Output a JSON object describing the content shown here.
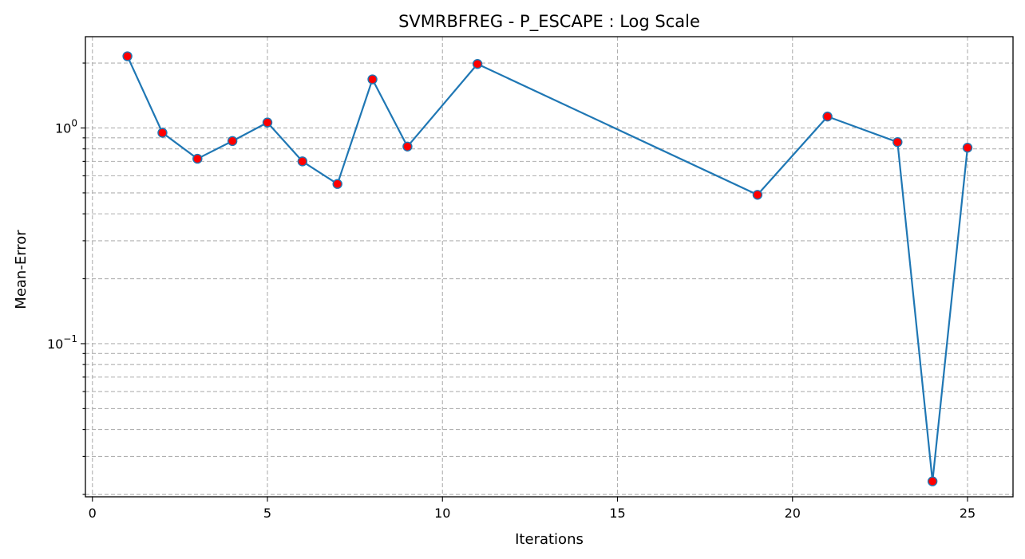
{
  "chart_data": {
    "type": "line",
    "title": "SVMRBFREG - P_ESCAPE : Log Scale",
    "xlabel": "Iterations",
    "ylabel": "Mean-Error",
    "yscale": "log",
    "grid": true,
    "xlim": [
      -0.2,
      26.3
    ],
    "ylim": [
      0.0195,
      2.65
    ],
    "x_ticks": [
      0,
      5,
      10,
      15,
      20,
      25
    ],
    "y_major_ticks": [
      0.1,
      1
    ],
    "y_major_tick_labels": [
      {
        "base": "10",
        "exp": "−1"
      },
      {
        "base": "10",
        "exp": "0"
      }
    ],
    "y_minor_ticks": [
      0.02,
      0.03,
      0.04,
      0.05,
      0.06,
      0.07,
      0.08,
      0.09,
      0.2,
      0.3,
      0.4,
      0.5,
      0.6,
      0.7,
      0.8,
      0.9,
      2
    ],
    "series": [
      {
        "x": [
          1,
          2,
          3,
          4,
          5,
          6,
          7,
          8,
          9,
          11,
          19,
          21,
          23,
          24,
          25
        ],
        "y": [
          2.15,
          0.95,
          0.72,
          0.87,
          1.06,
          0.7,
          0.55,
          1.68,
          0.82,
          1.98,
          0.49,
          1.13,
          0.86,
          0.023,
          0.81
        ],
        "line_color": "#1f77b4",
        "marker_color": "#ff0000",
        "marker_edge_color": "#1f77b4"
      }
    ]
  }
}
